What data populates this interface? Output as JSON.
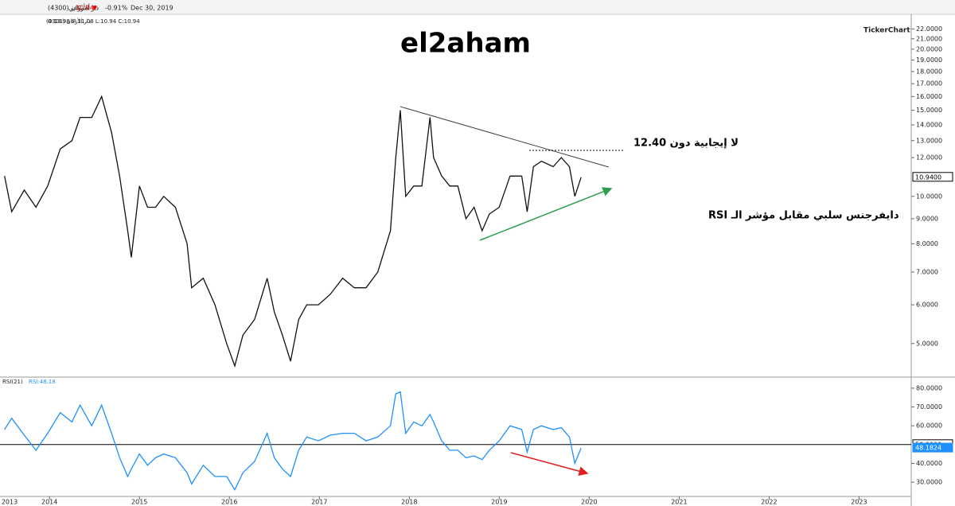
{
  "header": {
    "symbol": "دار الأركان (4300)",
    "period": "أسبوعي",
    "price": "10.94",
    "arrow": "▼",
    "change": "-0.91%",
    "date": "Dec 30, 2019",
    "symbol_short": "دار الأركان (4300)",
    "ohlc": "O:10.98 H:11.08 L:10.94 C:10.94",
    "brand": "TickerChart"
  },
  "chart_data": [
    {
      "type": "line",
      "title": "el2aham",
      "x": [
        2013.5,
        2013.58,
        2013.72,
        2013.85,
        2013.98,
        2014.12,
        2014.25,
        2014.34,
        2014.47,
        2014.58,
        2014.69,
        2014.78,
        2014.87,
        2014.91,
        2015.0,
        2015.09,
        2015.18,
        2015.27,
        2015.4,
        2015.53,
        2015.58,
        2015.71,
        2015.84,
        2015.97,
        2016.06,
        2016.15,
        2016.28,
        2016.42,
        2016.5,
        2016.59,
        2016.68,
        2016.77,
        2016.86,
        2016.99,
        2017.12,
        2017.26,
        2017.39,
        2017.52,
        2017.65,
        2017.79,
        2017.85,
        2017.9,
        2017.96,
        2018.05,
        2018.14,
        2018.23,
        2018.27,
        2018.36,
        2018.45,
        2018.54,
        2018.63,
        2018.72,
        2018.81,
        2018.89,
        2019.0,
        2019.12,
        2019.25,
        2019.31,
        2019.38,
        2019.47,
        2019.6,
        2019.69,
        2019.78,
        2019.84,
        2019.91
      ],
      "values": [
        11,
        9.3,
        10.3,
        9.5,
        10.5,
        12.5,
        13,
        14.5,
        14.5,
        16,
        13.5,
        11,
        8.5,
        7.5,
        10.5,
        9.5,
        9.5,
        10,
        9.5,
        8,
        6.5,
        6.8,
        6,
        5,
        4.5,
        5.2,
        5.6,
        6.8,
        5.8,
        5.2,
        4.6,
        5.6,
        6,
        6,
        6.3,
        6.8,
        6.5,
        6.5,
        7,
        8.5,
        12,
        15,
        10,
        10.5,
        10.5,
        14.5,
        12,
        11,
        10.5,
        10.5,
        9,
        9.5,
        8.5,
        9.2,
        9.5,
        11,
        11,
        9.3,
        11.5,
        11.8,
        11.5,
        12,
        11.5,
        10,
        10.94
      ],
      "color": "#111111",
      "log_scale": true,
      "xlim": [
        2013.45,
        2023.58
      ],
      "ylim": [
        4.3,
        22.7
      ],
      "yticks": [
        {
          "value": 22,
          "label": "22.0000"
        },
        {
          "value": 21,
          "label": "21.0000"
        },
        {
          "value": 20,
          "label": "20.0000"
        },
        {
          "value": 19,
          "label": "19.0000"
        },
        {
          "value": 18,
          "label": "18.0000"
        },
        {
          "value": 17,
          "label": "17.0000"
        },
        {
          "value": 16,
          "label": "16.0000"
        },
        {
          "value": 15,
          "label": "15.0000"
        },
        {
          "value": 14,
          "label": "14.0000"
        },
        {
          "value": 13,
          "label": "13.0000"
        },
        {
          "value": 12,
          "label": "12.0000"
        },
        {
          "value": 10,
          "label": "10.0000"
        },
        {
          "value": 9,
          "label": "9.0000"
        },
        {
          "value": 8,
          "label": "8.0000"
        },
        {
          "value": 7,
          "label": "7.0000"
        },
        {
          "value": 6,
          "label": "6.0000"
        },
        {
          "value": 5,
          "label": "5.0000"
        }
      ],
      "last_value_label": "10.9400",
      "annotations": [
        "لا إيجابية دون 12.40",
        "دايفرجنس سلبي مقابل مؤشر الـ RSI"
      ]
    },
    {
      "type": "line",
      "title": "RSI(21)",
      "x": [
        2013.5,
        2013.58,
        2013.72,
        2013.85,
        2013.98,
        2014.12,
        2014.25,
        2014.34,
        2014.47,
        2014.58,
        2014.69,
        2014.78,
        2014.87,
        2014.91,
        2015.0,
        2015.09,
        2015.18,
        2015.27,
        2015.4,
        2015.53,
        2015.58,
        2015.71,
        2015.84,
        2015.97,
        2016.06,
        2016.15,
        2016.28,
        2016.42,
        2016.5,
        2016.59,
        2016.68,
        2016.77,
        2016.86,
        2016.99,
        2017.12,
        2017.26,
        2017.39,
        2017.52,
        2017.65,
        2017.79,
        2017.85,
        2017.9,
        2017.96,
        2018.05,
        2018.14,
        2018.23,
        2018.27,
        2018.36,
        2018.45,
        2018.54,
        2018.63,
        2018.72,
        2018.81,
        2018.89,
        2019.0,
        2019.12,
        2019.25,
        2019.31,
        2019.38,
        2019.47,
        2019.6,
        2019.69,
        2019.78,
        2019.84,
        2019.91
      ],
      "series": [
        {
          "name": "RSI:48.18",
          "color": "#1e90ff",
          "values": [
            58,
            64,
            55,
            47,
            56,
            67,
            62,
            71,
            60,
            71,
            56,
            43,
            33,
            37,
            45,
            39,
            43,
            45,
            43,
            35,
            29,
            39,
            33,
            33,
            26,
            35,
            41,
            56,
            43,
            37,
            33,
            47,
            54,
            52,
            55,
            56,
            56,
            52,
            54,
            60,
            77,
            78,
            56,
            62,
            60,
            66,
            62,
            52,
            47,
            47,
            43,
            44,
            42,
            47,
            52,
            60,
            58,
            46,
            58,
            60,
            58,
            59,
            54,
            40,
            48.18
          ]
        }
      ],
      "xlim": [
        2013.45,
        2023.58
      ],
      "ylim": [
        20.7,
        84.2
      ],
      "xticks": [
        2013,
        2014,
        2015,
        2016,
        2017,
        2018,
        2019,
        2020,
        2021,
        2022,
        2023
      ],
      "yticks": [
        {
          "value": 80,
          "label": "80.0000"
        },
        {
          "value": 70,
          "label": "70.0000"
        },
        {
          "value": 60,
          "label": "60.0000"
        },
        {
          "value": 40,
          "label": "40.0000"
        },
        {
          "value": 30,
          "label": "30.0000"
        }
      ],
      "reference_line": {
        "value": 50,
        "label": "50.0000"
      },
      "last_value_label": "48.1824"
    }
  ]
}
